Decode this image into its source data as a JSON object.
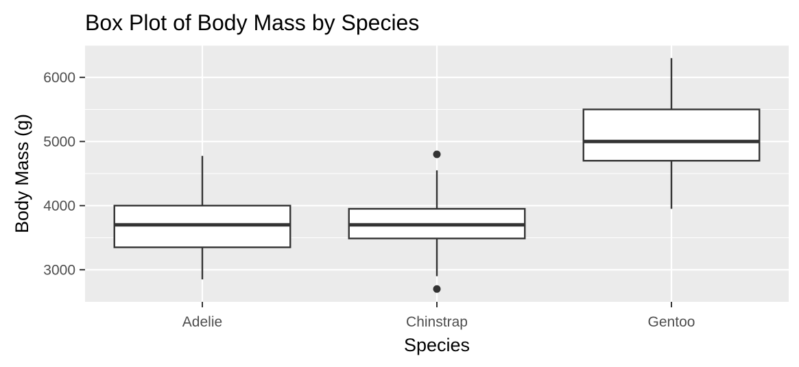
{
  "chart_data": {
    "type": "boxplot",
    "title": "Box Plot of Body Mass by Species",
    "xlabel": "Species",
    "ylabel": "Body Mass (g)",
    "categories": [
      "Adelie",
      "Chinstrap",
      "Gentoo"
    ],
    "y_ticks": [
      3000,
      4000,
      5000,
      6000
    ],
    "ylim": [
      2500,
      6500
    ],
    "grid": true,
    "panel_color": "#ebebeb",
    "box_fill": "#ffffff",
    "line_color": "#333333",
    "boxes": [
      {
        "category": "Adelie",
        "whisker_low": 2850,
        "q1": 3350,
        "median": 3700,
        "q3": 4000,
        "whisker_high": 4775,
        "outliers": []
      },
      {
        "category": "Chinstrap",
        "whisker_low": 2900,
        "q1": 3488,
        "median": 3700,
        "q3": 3950,
        "whisker_high": 4550,
        "outliers": [
          2700,
          4800
        ]
      },
      {
        "category": "Gentoo",
        "whisker_low": 3950,
        "q1": 4700,
        "median": 5000,
        "q3": 5500,
        "whisker_high": 6300,
        "outliers": []
      }
    ]
  }
}
